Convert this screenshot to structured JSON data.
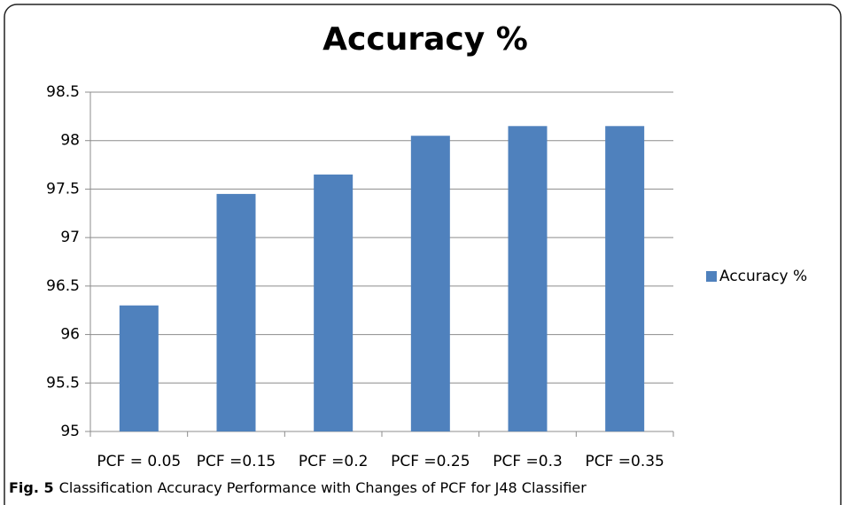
{
  "chart_data": {
    "type": "bar",
    "title": "Accuracy %",
    "categories": [
      "PCF = 0.05",
      "PCF =0.15",
      "PCF =0.2",
      "PCF =0.25",
      "PCF =0.3",
      "PCF =0.35"
    ],
    "series": [
      {
        "name": "Accuracy %",
        "color": "#4f81bd",
        "values": [
          96.3,
          97.45,
          97.65,
          98.05,
          98.15,
          98.15
        ]
      }
    ],
    "ylim": [
      95,
      98.5
    ],
    "yticks": [
      95,
      95.5,
      96,
      96.5,
      97,
      97.5,
      98,
      98.5
    ],
    "grid": true,
    "legend": "right"
  },
  "caption": {
    "label": "Fig. 5",
    "text": "Classification Accuracy Performance with Changes of PCF for J48 Classifier"
  }
}
